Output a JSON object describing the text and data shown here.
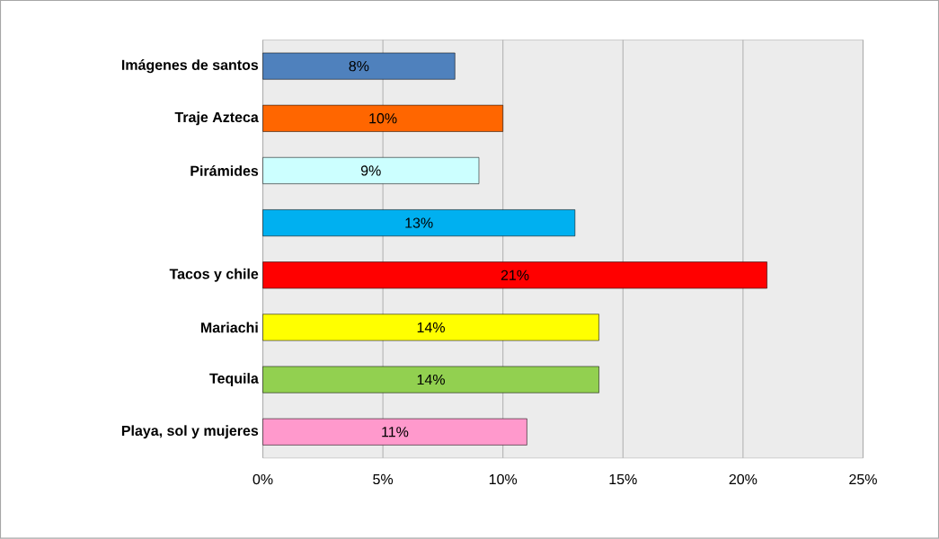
{
  "chart_data": {
    "type": "bar",
    "orientation": "horizontal",
    "categories": [
      "Imágenes de santos",
      "Traje Azteca",
      "Pirámides",
      null,
      "Tacos y chile",
      "Mariachi",
      "Tequila",
      "Playa, sol y mujeres"
    ],
    "values": [
      8,
      10,
      9,
      13,
      21,
      14,
      14,
      11
    ],
    "value_labels": [
      "8%",
      "10%",
      "9%",
      "13%",
      "21%",
      "14%",
      "14%",
      "11%"
    ],
    "colors": [
      "#4f81bd",
      "#ff6600",
      "#ccffff",
      "#00b0f0",
      "#ff0000",
      "#ffff00",
      "#92d050",
      "#ff99cc"
    ],
    "xlim": [
      0,
      25
    ],
    "xticks": [
      {
        "value": 0,
        "label": "0%"
      },
      {
        "value": 5,
        "label": "5%"
      },
      {
        "value": 10,
        "label": "10%"
      },
      {
        "value": 15,
        "label": "15%"
      },
      {
        "value": 20,
        "label": "20%"
      },
      {
        "value": 25,
        "label": "25%"
      }
    ],
    "grid": "x"
  }
}
